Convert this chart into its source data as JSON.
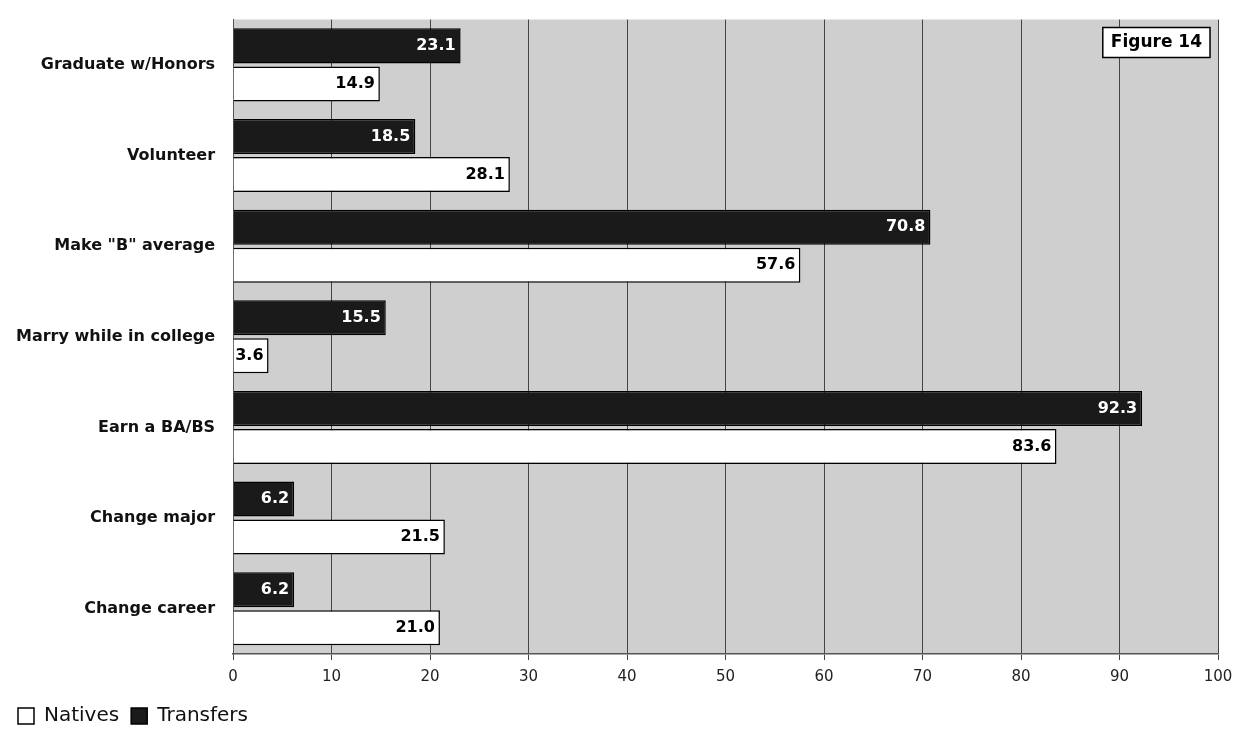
{
  "chart_data": {
    "type": "bar",
    "orientation": "horizontal",
    "categories": [
      "Graduate w/Honors",
      "Volunteer",
      "Make \"B\" average",
      "Marry while in college",
      "Earn a BA/BS",
      "Change major",
      "Change career"
    ],
    "series": [
      {
        "name": "Natives",
        "color": "#ffffff",
        "values": [
          14.9,
          28.1,
          57.6,
          3.6,
          83.6,
          21.5,
          21.0
        ]
      },
      {
        "name": "Transfers",
        "color": "#1a1a1a",
        "values": [
          23.1,
          18.5,
          70.8,
          15.5,
          92.3,
          6.2,
          6.2
        ]
      }
    ],
    "value_labels": [
      [
        "14.9",
        "28.1",
        "57.6",
        "3.6",
        "83.6",
        "21.5",
        "21.0"
      ],
      [
        "23.1",
        "18.5",
        "70.8",
        "15.5",
        "92.3",
        "6.2",
        "6.2"
      ]
    ],
    "xlim": [
      0,
      100
    ],
    "xticks": [
      0,
      10,
      20,
      30,
      40,
      50,
      60,
      70,
      80,
      90,
      100
    ],
    "grid": "x",
    "legend": "bottom",
    "annotations": [
      "Figure 14"
    ]
  }
}
